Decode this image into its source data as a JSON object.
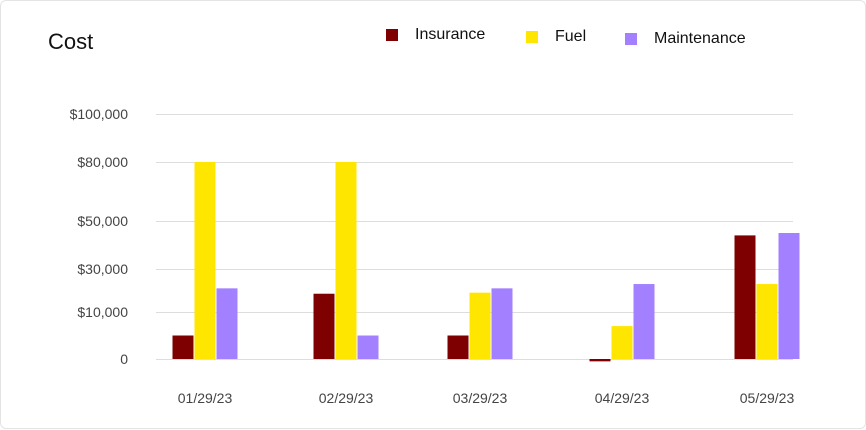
{
  "chart_data": {
    "type": "bar",
    "title": "Cost",
    "categories": [
      "01/29/23",
      "02/29/23",
      "03/29/23",
      "04/29/23",
      "05/29/23"
    ],
    "series": [
      {
        "name": "Insurance",
        "color": "#7f0000",
        "values": [
          5000,
          18500,
          5000,
          -500,
          44000
        ]
      },
      {
        "name": "Fuel",
        "color": "#ffe600",
        "values": [
          80000,
          80000,
          19000,
          7000,
          23000
        ]
      },
      {
        "name": "Maintenance",
        "color": "#a280ff",
        "values": [
          21000,
          5000,
          21000,
          23000,
          45000
        ]
      }
    ],
    "y_ticks": [
      {
        "label": "0"
      },
      {
        "label": "$10,000"
      },
      {
        "label": "$30,000"
      },
      {
        "label": "$50,000"
      },
      {
        "label": "$80,000"
      },
      {
        "label": "$100,000"
      }
    ],
    "ylim": [
      -5000,
      100000
    ],
    "grid": true,
    "legend_position": "top-right",
    "xlabel": "",
    "ylabel": ""
  }
}
